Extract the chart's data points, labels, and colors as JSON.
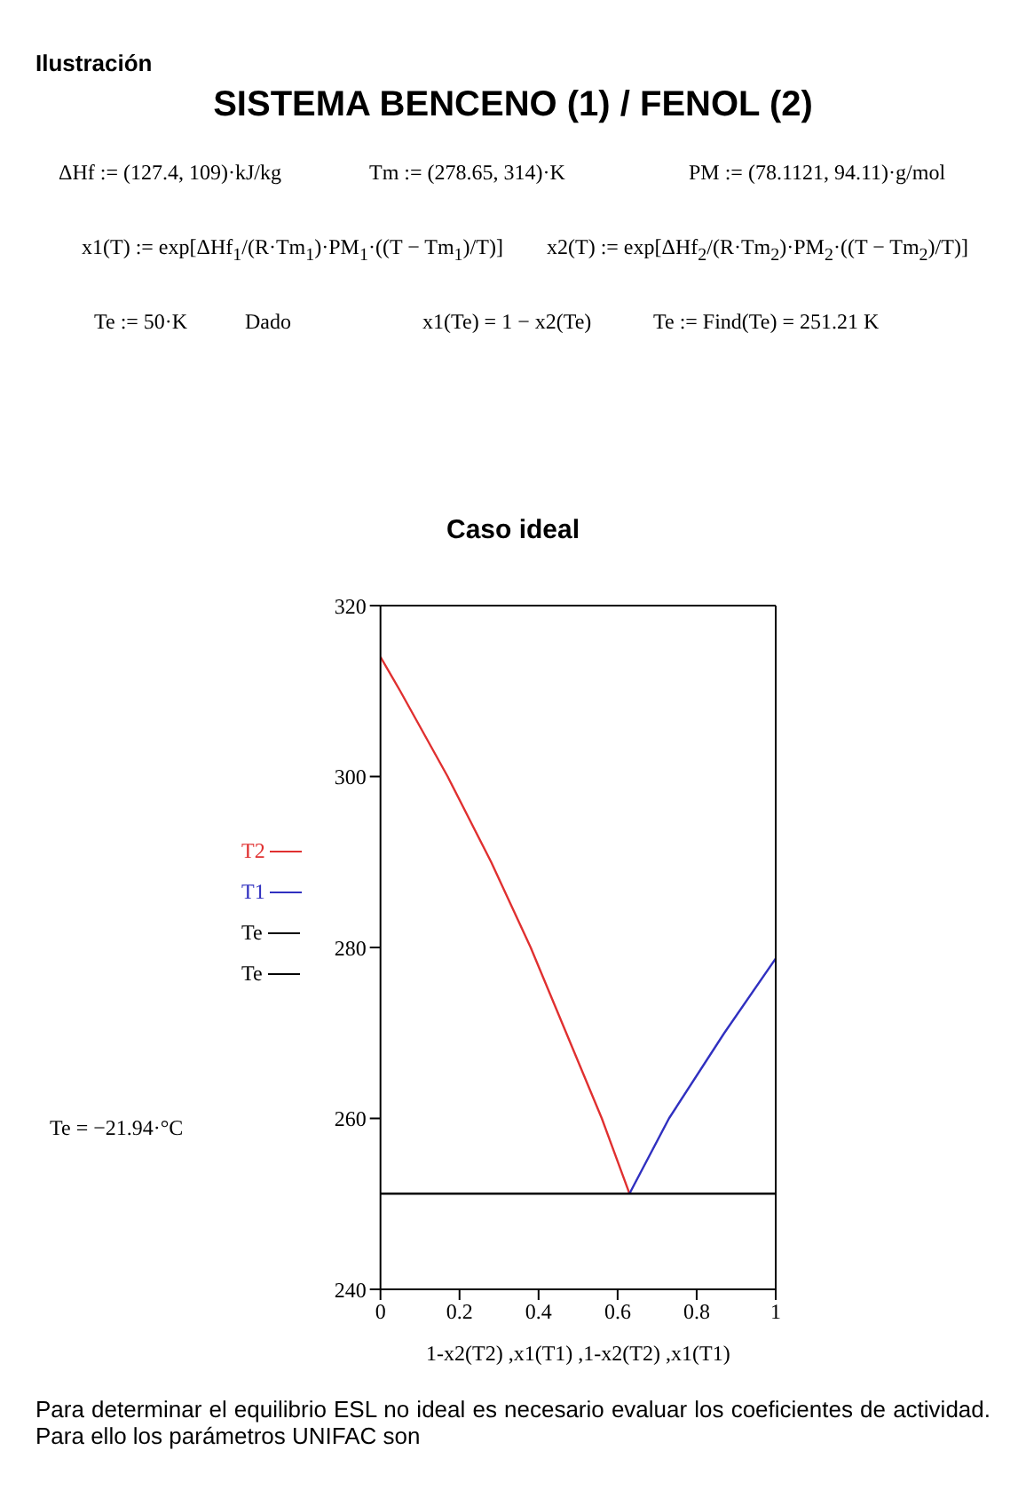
{
  "chart_data": {
    "type": "line",
    "title": "Caso ideal",
    "xlabel": "1-x2(T2) ,x1(T1) ,1-x2(T2) ,x1(T1)",
    "annotations": [
      "Ilustración",
      "SISTEMA BENCENO (1) / FENOL (2)",
      "ΔHf := (127.4, 109)·kJ/kg",
      "Tm := (278.65, 314)·K",
      "PM := (78.1121, 94.11)·g/mol",
      "x1(T) := exp[ΔHf$_{1}$/(R·Tm$_{1}$)·PM$_{1}$·((T − Tm$_{1}$)/T)]",
      "x2(T) := exp[ΔHf$_{2}$/(R·Tm$_{2}$)·PM$_{2}$·((T − Tm$_{2}$)/T)]",
      "Te := 50·K",
      "Dado",
      "x1(Te) = 1 − x2(Te)",
      "Te := Find(Te) = 251.21 K",
      "Te = −21.94·°C",
      "Para determinar el equilibrio ESL no ideal es necesario evaluar los coeficientes de actividad. Para ello los parámetros UNIFAC son"
    ],
    "xlim": [
      0,
      1
    ],
    "xticks": [
      0,
      0.2,
      0.4,
      0.6,
      0.8,
      1
    ],
    "ylim": [
      240,
      320
    ],
    "yticks": [
      240,
      260,
      280,
      300,
      320
    ],
    "legend": "left",
    "series": [
      {
        "name": "T2",
        "color": "#e03030",
        "x": [
          0,
          0.05,
          0.17,
          0.28,
          0.38,
          0.47,
          0.56,
          0.63
        ],
        "values": [
          314,
          310,
          300,
          290,
          280,
          270,
          260,
          251.2
        ]
      },
      {
        "name": "T1",
        "color": "#3030c0",
        "x": [
          0.63,
          0.73,
          0.87,
          1
        ],
        "values": [
          251.2,
          260,
          270,
          278.7
        ]
      },
      {
        "name": "Te",
        "color": "#000000",
        "x": [
          0,
          0.63,
          1
        ],
        "values": [
          251.2,
          251.2,
          251.2
        ]
      },
      {
        "name": "Te",
        "color": "#000000"
      }
    ]
  }
}
